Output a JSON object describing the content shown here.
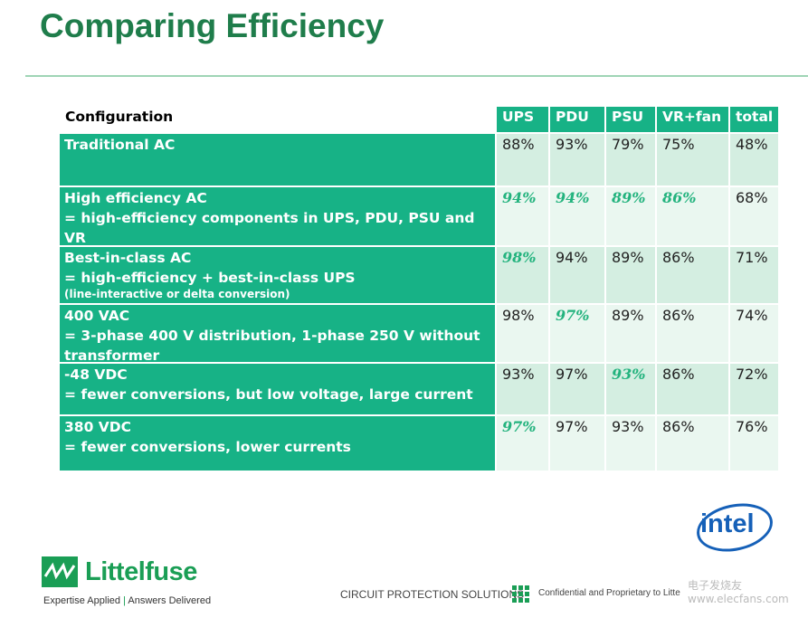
{
  "header": {
    "title": "Comparing Efficiency"
  },
  "table": {
    "columns": [
      "Configuration",
      "UPS",
      "PDU",
      "PSU",
      "VR+fan",
      "total"
    ],
    "rows": [
      {
        "name": "Traditional AC",
        "values": [
          "88%",
          "93%",
          "79%",
          "75%",
          "48%"
        ],
        "highlighted": [
          false,
          false,
          false,
          false,
          false
        ]
      },
      {
        "name": "High efficiency AC",
        "detail": "= high-efficiency components in UPS, PDU,  PSU and VR",
        "values": [
          "94%",
          "94%",
          "89%",
          "86%",
          "68%"
        ],
        "highlighted": [
          true,
          true,
          true,
          true,
          false
        ]
      },
      {
        "name": "Best-in-class AC",
        "detail": "= high-efficiency + best-in-class UPS",
        "note": "(line-interactive or delta conversion)",
        "values": [
          "98%",
          "94%",
          "89%",
          "86%",
          "71%"
        ],
        "highlighted": [
          true,
          false,
          false,
          false,
          false
        ]
      },
      {
        "name": "400 VAC",
        "detail": "= 3-phase 400 V distribution, 1-phase 250 V without transformer",
        "values": [
          "98%",
          "97%",
          "89%",
          "86%",
          "74%"
        ],
        "highlighted": [
          false,
          true,
          false,
          false,
          false
        ]
      },
      {
        "name": "-48 VDC",
        "detail": "= fewer conversions, but low voltage, large current",
        "values": [
          "93%",
          "97%",
          "93%",
          "86%",
          "72%"
        ],
        "highlighted": [
          false,
          false,
          true,
          false,
          false
        ]
      },
      {
        "name": "380 VDC",
        "detail": "= fewer conversions, lower currents",
        "values": [
          "97%",
          "97%",
          "93%",
          "86%",
          "76%"
        ],
        "highlighted": [
          true,
          false,
          false,
          false,
          false
        ]
      }
    ]
  },
  "footer": {
    "brand": "Littelfuse",
    "tagline_left": "Expertise Applied",
    "tagline_right": "Answers Delivered",
    "section": "CIRCUIT PROTECTION SOLUTIONS",
    "confidential": "Confidential and Proprietary to Litte",
    "partner": "intel",
    "watermark": "电子发烧友 www.elecfans.com"
  }
}
